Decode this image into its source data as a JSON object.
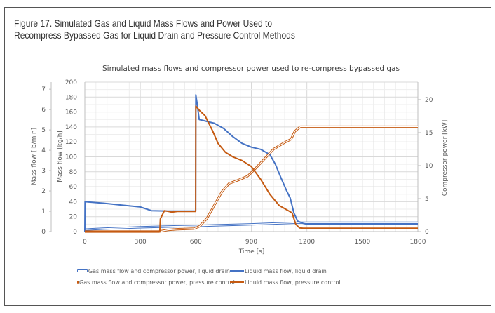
{
  "figure": {
    "title_line1": "Figure 17. Simulated Gas and Liquid Mass Flows and Power Used to",
    "title_line2": "Recompress Bypassed Gas for Liquid Drain and Pressure Control Methods"
  },
  "colors": {
    "liquid_drain": "#4472C4",
    "pressure_control": "#C55A11",
    "grid": "#E6E6E6",
    "axis": "#BFBFBF"
  },
  "chart_data": {
    "type": "line",
    "title": "Simulated mass flows and compressor power used to re-compress bypassed gas",
    "xlabel": "Time [s]",
    "ylabel_left_outer": "Mass flow [lb/min]",
    "ylabel_left_inner": "Mass flow [kg/h]",
    "ylabel_right": "Compressor power [kW]",
    "xlim": [
      0,
      1800
    ],
    "x_ticks": [
      "0",
      "300",
      "600",
      "900",
      "1200",
      "1500",
      "1800"
    ],
    "ylim_kg_h": [
      0,
      200
    ],
    "y_ticks_kg_h": [
      "0",
      "20",
      "40",
      "60",
      "80",
      "100",
      "120",
      "140",
      "160",
      "180",
      "200"
    ],
    "ylim_lb_min": [
      0,
      7.35
    ],
    "y_ticks_lb_min": [
      "0",
      "1",
      "2",
      "3",
      "4",
      "5",
      "6",
      "7"
    ],
    "ylim_kw": [
      0,
      22.65
    ],
    "y_ticks_kw": [
      "0",
      "5",
      "10",
      "15",
      "20"
    ],
    "grid": true,
    "legend_position": "bottom",
    "series": [
      {
        "name": "Gas mass flow and compressor power, liquid drain",
        "axis": "right_kw",
        "style": "double",
        "color_key": "liquid_drain",
        "points": [
          [
            0,
            0.3
          ],
          [
            100,
            0.45
          ],
          [
            300,
            0.65
          ],
          [
            500,
            0.8
          ],
          [
            600,
            0.85
          ],
          [
            700,
            0.95
          ],
          [
            900,
            1.1
          ],
          [
            1100,
            1.3
          ],
          [
            1150,
            1.35
          ],
          [
            1800,
            1.35
          ]
        ]
      },
      {
        "name": "Liquid mass flow, liquid drain",
        "axis": "left_kg_h",
        "style": "single",
        "color_key": "liquid_drain",
        "points": [
          [
            0,
            0
          ],
          [
            1,
            40
          ],
          [
            100,
            38
          ],
          [
            200,
            35.5
          ],
          [
            300,
            33
          ],
          [
            330,
            30.5
          ],
          [
            360,
            28
          ],
          [
            450,
            27.5
          ],
          [
            599,
            27.5
          ],
          [
            600,
            183
          ],
          [
            608,
            170
          ],
          [
            618,
            150
          ],
          [
            650,
            148
          ],
          [
            700,
            145
          ],
          [
            750,
            138
          ],
          [
            800,
            127
          ],
          [
            850,
            118
          ],
          [
            900,
            113
          ],
          [
            950,
            110
          ],
          [
            1000,
            103
          ],
          [
            1030,
            90
          ],
          [
            1060,
            72
          ],
          [
            1090,
            55
          ],
          [
            1110,
            45
          ],
          [
            1130,
            25
          ],
          [
            1150,
            14
          ],
          [
            1180,
            11
          ],
          [
            1200,
            10
          ],
          [
            1800,
            10
          ]
        ]
      },
      {
        "name": "Gas mass flow and compressor power, pressure control",
        "axis": "right_kw",
        "style": "double",
        "color_key": "pressure_control",
        "points": [
          [
            0,
            0
          ],
          [
            400,
            0
          ],
          [
            450,
            0.25
          ],
          [
            500,
            0.35
          ],
          [
            590,
            0.45
          ],
          [
            620,
            0.8
          ],
          [
            660,
            2.0
          ],
          [
            700,
            4.0
          ],
          [
            740,
            6.0
          ],
          [
            780,
            7.3
          ],
          [
            830,
            7.8
          ],
          [
            880,
            8.4
          ],
          [
            920,
            9.5
          ],
          [
            970,
            11.0
          ],
          [
            1020,
            12.5
          ],
          [
            1080,
            13.5
          ],
          [
            1115,
            14.0
          ],
          [
            1135,
            15.2
          ],
          [
            1165,
            15.9
          ],
          [
            1800,
            15.9
          ]
        ]
      },
      {
        "name": "Liquid mass flow, pressure control",
        "axis": "left_kg_h",
        "style": "single",
        "color_key": "pressure_control",
        "points": [
          [
            0,
            0
          ],
          [
            405,
            0
          ],
          [
            408,
            17
          ],
          [
            430,
            28
          ],
          [
            450,
            27
          ],
          [
            470,
            26
          ],
          [
            500,
            27
          ],
          [
            599,
            27
          ],
          [
            600,
            168
          ],
          [
            620,
            162
          ],
          [
            650,
            155
          ],
          [
            690,
            135
          ],
          [
            720,
            118
          ],
          [
            760,
            106
          ],
          [
            800,
            100
          ],
          [
            850,
            95
          ],
          [
            900,
            87
          ],
          [
            950,
            70
          ],
          [
            1000,
            50
          ],
          [
            1050,
            35
          ],
          [
            1100,
            28
          ],
          [
            1120,
            25
          ],
          [
            1140,
            10
          ],
          [
            1160,
            5
          ],
          [
            1180,
            4.5
          ],
          [
            1800,
            4.5
          ]
        ]
      }
    ]
  },
  "legend": {
    "items": [
      {
        "label": "Gas mass flow and compressor power, liquid drain"
      },
      {
        "label": "Liquid mass flow, liquid drain"
      },
      {
        "label": "Gas mass flow and compressor power, pressure control"
      },
      {
        "label": "Liquid mass flow, pressure control"
      }
    ]
  }
}
